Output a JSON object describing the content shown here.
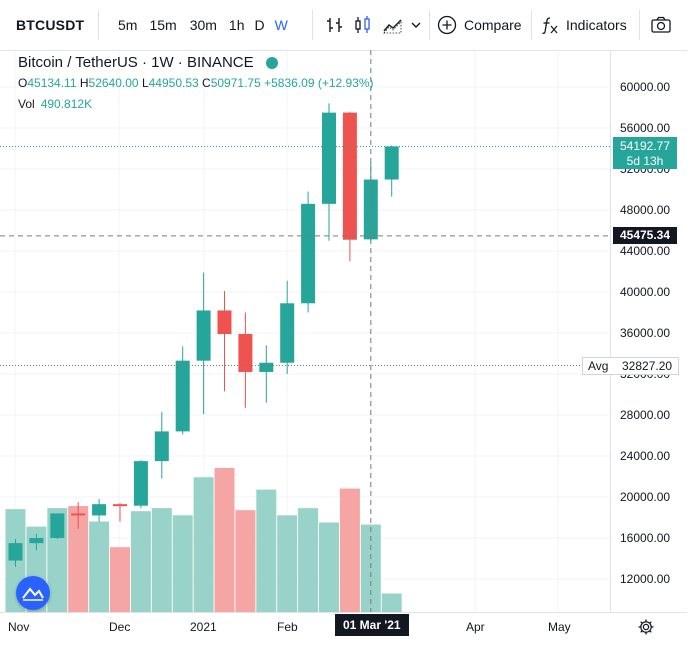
{
  "toolbar": {
    "symbol": "BTCUSDT",
    "intervals": [
      "5m",
      "15m",
      "30m",
      "1h",
      "D",
      "W"
    ],
    "active_interval": "W",
    "compare_label": "Compare",
    "indicators_label": "Indicators",
    "icons": [
      "bar-style-icon",
      "candles-icon",
      "area-icon",
      "chevron-down-icon",
      "plus-circle-icon",
      "fx-icon",
      "camera-icon"
    ]
  },
  "legend": {
    "title": "Bitcoin / TetherUS · 1W · BINANCE",
    "o_label": "O",
    "o": "45134.11",
    "h_label": "H",
    "h": "52640.00",
    "l_label": "L",
    "l": "44950.53",
    "c_label": "C",
    "c": "50971.75",
    "change": "+5836.09 (+12.93%)",
    "vol_label": "Vol",
    "vol": "490.812K"
  },
  "price_tags": {
    "last_price": "54192.77",
    "countdown": "5d 13h",
    "crosshair_price": "45475.34",
    "avg_label": "Avg",
    "avg_value": "32827.20"
  },
  "time_axis": {
    "labels": [
      "Nov",
      "Dec",
      "2021",
      "Feb",
      "Apr",
      "May"
    ],
    "crosshair_label": "01 Mar '21"
  },
  "colors": {
    "up": "#26a69a",
    "down": "#ef5350",
    "up_vol": "#98d2c9",
    "down_vol": "#f4a5a4",
    "accent": "#2962ff"
  },
  "chart_data": {
    "type": "candlestick",
    "title": "Bitcoin / TetherUS · 1W · BINANCE",
    "ylim": [
      8000,
      64000
    ],
    "y_ticks": [
      12000,
      16000,
      20000,
      24000,
      28000,
      32000,
      36000,
      40000,
      44000,
      48000,
      52000,
      56000,
      60000
    ],
    "y_tick_labels": [
      "12000.00",
      "16000.00",
      "20000.00",
      "24000.00",
      "28000.00",
      "32000.00",
      "36000.00",
      "40000.00",
      "44000.00",
      "48000.00",
      "52000.00",
      "56000.00",
      "60000.00"
    ],
    "volume_ylim": [
      0,
      2600
    ],
    "candles": [
      {
        "o": 13800,
        "h": 15900,
        "l": 13200,
        "c": 15500,
        "v": 1000
      },
      {
        "o": 15500,
        "h": 16400,
        "l": 14800,
        "c": 16000,
        "v": 830
      },
      {
        "o": 16000,
        "h": 18400,
        "l": 15900,
        "c": 18400,
        "v": 1010
      },
      {
        "o": 18400,
        "h": 19500,
        "l": 16900,
        "c": 18200,
        "v": 1030
      },
      {
        "o": 18200,
        "h": 19800,
        "l": 17600,
        "c": 19300,
        "v": 880
      },
      {
        "o": 19300,
        "h": 19400,
        "l": 17600,
        "c": 19150,
        "v": 630
      },
      {
        "o": 19150,
        "h": 23600,
        "l": 18900,
        "c": 23500,
        "v": 980
      },
      {
        "o": 23500,
        "h": 28300,
        "l": 21800,
        "c": 26400,
        "v": 1010
      },
      {
        "o": 26400,
        "h": 34700,
        "l": 26100,
        "c": 33300,
        "v": 940
      },
      {
        "o": 33300,
        "h": 41900,
        "l": 28100,
        "c": 38200,
        "v": 1310
      },
      {
        "o": 38200,
        "h": 40100,
        "l": 30300,
        "c": 35900,
        "v": 1400
      },
      {
        "o": 35900,
        "h": 38000,
        "l": 28700,
        "c": 32200,
        "v": 990
      },
      {
        "o": 32200,
        "h": 34800,
        "l": 29200,
        "c": 33100,
        "v": 1190
      },
      {
        "o": 33100,
        "h": 41100,
        "l": 32000,
        "c": 38900,
        "v": 940
      },
      {
        "o": 38900,
        "h": 49800,
        "l": 38000,
        "c": 48600,
        "v": 1010
      },
      {
        "o": 48600,
        "h": 58400,
        "l": 45000,
        "c": 57500,
        "v": 870
      },
      {
        "o": 57500,
        "h": 57600,
        "l": 43000,
        "c": 45100,
        "v": 1200
      },
      {
        "o": 45134.11,
        "h": 52640.0,
        "l": 44950.53,
        "c": 50971.75,
        "v": 850
      },
      {
        "o": 50971.75,
        "h": 54300,
        "l": 49300,
        "c": 54192.77,
        "v": 180
      }
    ],
    "grid": true
  }
}
